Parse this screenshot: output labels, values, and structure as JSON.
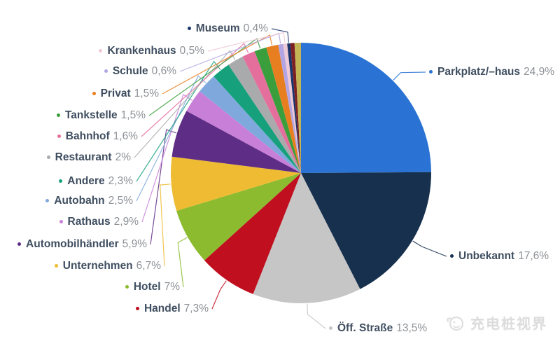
{
  "chart_data": {
    "type": "pie",
    "title": "",
    "unit": "%",
    "decimal_style": "comma",
    "legend_position": "callout-labels-with-leader-lines",
    "background": "#ffffff",
    "label_text_color": "#3f4e60",
    "value_text_color": "#8d9196",
    "slices": [
      {
        "label": "Parkplatz/–haus",
        "display": "24,9%",
        "value": 24.9,
        "color": "#2a73d4"
      },
      {
        "label": "Unbekannt",
        "display": "17,6%",
        "value": 17.6,
        "color": "#16304e"
      },
      {
        "label": "Öff. Straße",
        "display": "13,5%",
        "value": 13.5,
        "color": "#c6c6c6"
      },
      {
        "label": "Handel",
        "display": "7,3%",
        "value": 7.3,
        "color": "#c00f1e"
      },
      {
        "label": "Hotel",
        "display": "7%",
        "value": 7.0,
        "color": "#8cbb2f"
      },
      {
        "label": "Unternehmen",
        "display": "6,7%",
        "value": 6.7,
        "color": "#eebb33"
      },
      {
        "label": "Automobilhändler",
        "display": "5,9%",
        "value": 5.9,
        "color": "#5e2d85"
      },
      {
        "label": "Rathaus",
        "display": "2,9%",
        "value": 2.9,
        "color": "#c87fd8"
      },
      {
        "label": "Autobahn",
        "display": "2,5%",
        "value": 2.5,
        "color": "#7fa9dd"
      },
      {
        "label": "Andere",
        "display": "2,3%",
        "value": 2.3,
        "color": "#16a17c"
      },
      {
        "label": "Restaurant",
        "display": "2%",
        "value": 2.0,
        "color": "#a8aaac"
      },
      {
        "label": "Bahnhof",
        "display": "1,6%",
        "value": 1.6,
        "color": "#e46f9d"
      },
      {
        "label": "Tankstelle",
        "display": "1,5%",
        "value": 1.5,
        "color": "#3a9e3c"
      },
      {
        "label": "Privat",
        "display": "1,5%",
        "value": 1.5,
        "color": "#e77f21"
      },
      {
        "label": "Schule",
        "display": "0,6%",
        "value": 0.6,
        "color": "#b3a5e3"
      },
      {
        "label": "Krankenhaus",
        "display": "0,5%",
        "value": 0.5,
        "color": "#eec9d6"
      },
      {
        "label": "Museum",
        "display": "0,4%",
        "value": 0.4,
        "color": "#1b356b"
      },
      {
        "label": "",
        "display": "",
        "value": 0.5,
        "color": "#7d2024",
        "unlabeled": true
      },
      {
        "label": "",
        "display": "",
        "value": 0.8,
        "color": "#c3b456",
        "unlabeled": true
      }
    ]
  },
  "watermark": {
    "text": "充电桩视界"
  }
}
